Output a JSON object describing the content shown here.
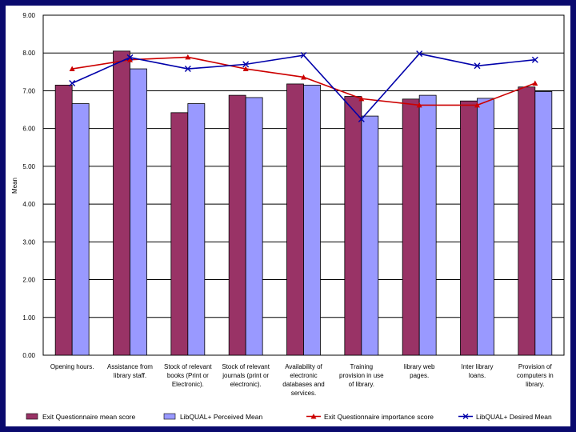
{
  "chart_data": {
    "type": "bar",
    "title": "",
    "xlabel": "",
    "ylabel": "Mean",
    "ylim": [
      0,
      9
    ],
    "yticks": [
      "0.00",
      "1.00",
      "2.00",
      "3.00",
      "4.00",
      "5.00",
      "6.00",
      "7.00",
      "8.00",
      "9.00"
    ],
    "categories": [
      [
        "Opening hours."
      ],
      [
        "Assistance from",
        "library staff."
      ],
      [
        "Stock of relevant",
        "books (Print or",
        "Electronic)."
      ],
      [
        "Stock of relevant",
        "journals (print or",
        "electronic)."
      ],
      [
        "Availability of",
        "electronic",
        "databases and",
        "services."
      ],
      [
        "Training",
        "provision in use",
        "of library."
      ],
      [
        "library web",
        "pages."
      ],
      [
        "Inter library",
        "loans."
      ],
      [
        "Provision of",
        "computers in",
        "library."
      ]
    ],
    "series": [
      {
        "name": "Exit Questionnaire mean score",
        "kind": "bar",
        "color": "#993366",
        "values": [
          7.15,
          8.05,
          6.42,
          6.88,
          7.18,
          6.85,
          6.78,
          6.73,
          7.1
        ]
      },
      {
        "name": "LibQUAL+ Perceived Mean",
        "kind": "bar",
        "color": "#9999ff",
        "values": [
          6.66,
          7.58,
          6.66,
          6.82,
          7.15,
          6.33,
          6.88,
          6.8,
          6.98
        ]
      },
      {
        "name": "Exit Questionnaire importance score",
        "kind": "line",
        "color": "#cc0000",
        "values": [
          7.58,
          7.82,
          7.89,
          7.58,
          7.36,
          6.79,
          6.62,
          6.62,
          7.2
        ]
      },
      {
        "name": "LibQUAL+ Desired Mean",
        "kind": "line",
        "color": "#0000aa",
        "values": [
          7.2,
          7.88,
          7.58,
          7.7,
          7.94,
          6.25,
          7.98,
          7.66,
          7.82
        ]
      }
    ],
    "grid": true,
    "legend": "bottom"
  }
}
